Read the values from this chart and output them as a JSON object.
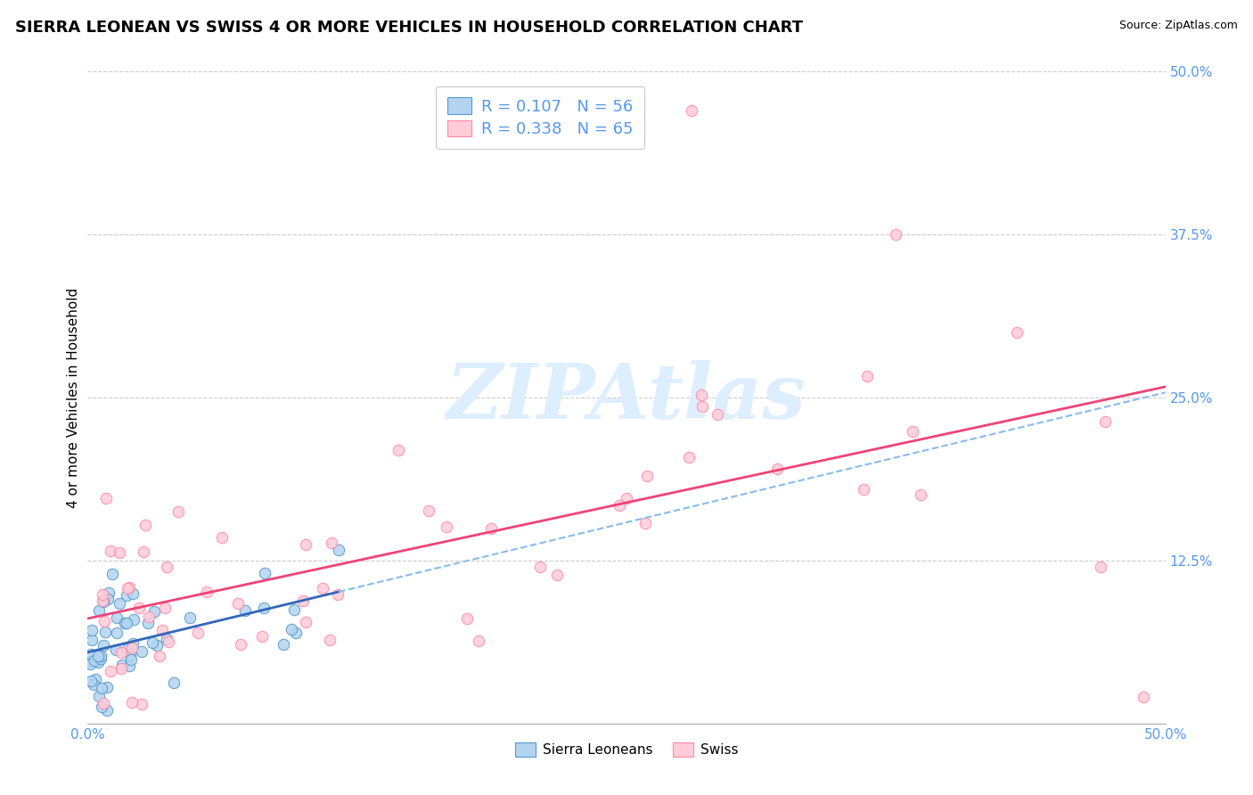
{
  "title": "SIERRA LEONEAN VS SWISS 4 OR MORE VEHICLES IN HOUSEHOLD CORRELATION CHART",
  "source_text": "Source: ZipAtlas.com",
  "ylabel": "4 or more Vehicles in Household",
  "xlim": [
    0.0,
    0.5
  ],
  "ylim": [
    0.0,
    0.5
  ],
  "legend_r1": "R = 0.107",
  "legend_n1": "N = 56",
  "legend_r2": "R = 0.338",
  "legend_n2": "N = 65",
  "legend_label1": "Sierra Leoneans",
  "legend_label2": "Swiss",
  "color_sl_face": "#b3d4f0",
  "color_sl_edge": "#5599cc",
  "color_swiss_face": "#ffccd8",
  "color_swiss_edge": "#ff88aa",
  "color_sl_line": "#3366bb",
  "color_sl_line_dash": "#88bbee",
  "color_swiss_line": "#ee4477",
  "watermark": "ZIPAtlas",
  "watermark_color": "#ddeeff",
  "title_fontsize": 13,
  "tick_fontsize": 11,
  "ylabel_fontsize": 11,
  "right_tick_color": "#5599ee",
  "bottom_tick_color": "#5599ee",
  "grid_color": "#cccccc",
  "yticks": [
    0.0,
    0.125,
    0.25,
    0.375,
    0.5
  ],
  "ytick_labels": [
    "",
    "12.5%",
    "25.0%",
    "37.5%",
    "50.0%"
  ]
}
